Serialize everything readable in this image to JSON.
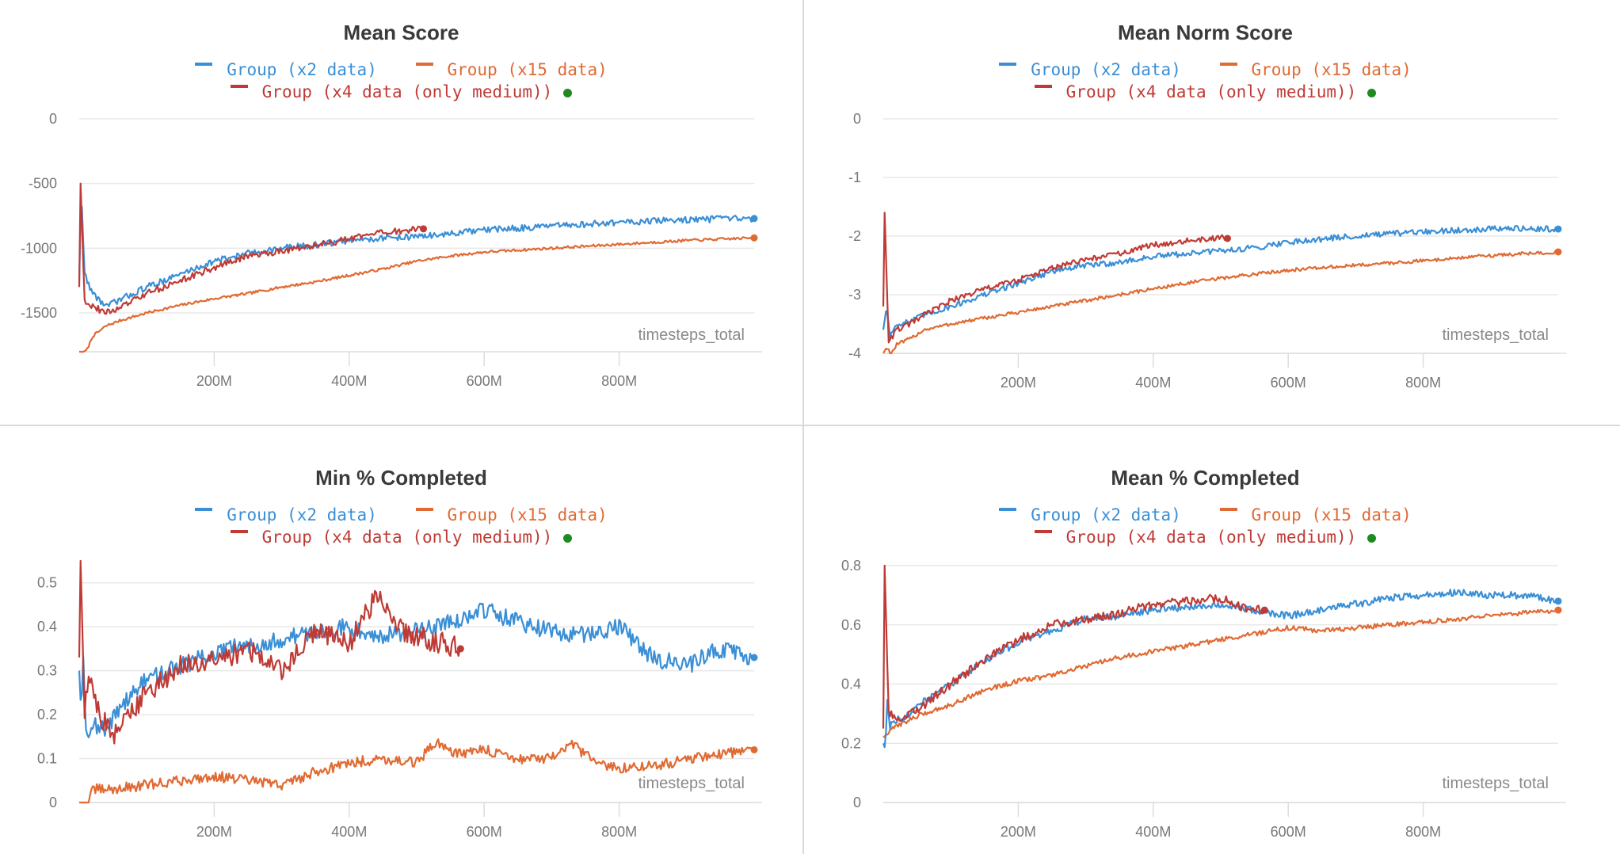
{
  "colors": {
    "x2": "#3a8fd6",
    "x15": "#e06a33",
    "x4": "#bf3a35",
    "dot": "#1f8a1f",
    "grid": "#e8e8e8",
    "axis_text": "#777777"
  },
  "legend": {
    "x2": "Group (x2 data)",
    "x15": "Group (x15 data)",
    "x4": "Group (x4 data (only medium))"
  },
  "chart_data": [
    {
      "type": "line",
      "title": "Mean Score",
      "xlabel": "timesteps_total",
      "ylabel": "",
      "xlim": [
        0,
        1000
      ],
      "ylim": [
        -1800,
        0
      ],
      "yticks": [
        0,
        -500,
        -1000,
        -1500
      ],
      "ytick_labels": [
        "0",
        "-500",
        "-1000",
        "-1500"
      ],
      "xticks": [
        200,
        400,
        600,
        800
      ],
      "xtick_labels": [
        "200M",
        "400M",
        "600M",
        "800M"
      ],
      "grid": true,
      "legend_position": "top-center",
      "x_unit": "M timesteps",
      "series": [
        {
          "name": "Group (x2 data)",
          "key": "x2",
          "x": [
            0,
            3,
            8,
            20,
            40,
            60,
            100,
            150,
            200,
            250,
            300,
            350,
            400,
            450,
            500,
            550,
            600,
            700,
            800,
            900,
            1000
          ],
          "y": [
            -1250,
            -550,
            -1200,
            -1350,
            -1450,
            -1400,
            -1300,
            -1200,
            -1100,
            -1040,
            -1000,
            -975,
            -940,
            -920,
            -910,
            -890,
            -860,
            -830,
            -800,
            -780,
            -770
          ],
          "noise": 25
        },
        {
          "name": "Group (x15 data)",
          "key": "x15",
          "x": [
            0,
            5,
            12,
            20,
            40,
            60,
            100,
            150,
            200,
            250,
            300,
            350,
            400,
            450,
            500,
            550,
            600,
            700,
            800,
            900,
            1000
          ],
          "y": [
            -1800,
            -1820,
            -1780,
            -1680,
            -1600,
            -1560,
            -1500,
            -1440,
            -1390,
            -1350,
            -1300,
            -1260,
            -1210,
            -1160,
            -1100,
            -1060,
            -1030,
            -1000,
            -970,
            -940,
            -920
          ],
          "noise": 10
        },
        {
          "name": "Group (x4 data (only medium))",
          "key": "x4",
          "x": [
            0,
            2,
            8,
            20,
            40,
            60,
            100,
            150,
            200,
            250,
            300,
            350,
            400,
            450,
            510
          ],
          "y": [
            -1300,
            -500,
            -1400,
            -1450,
            -1500,
            -1460,
            -1350,
            -1250,
            -1150,
            -1060,
            -1020,
            -980,
            -930,
            -880,
            -850
          ],
          "noise": 25
        }
      ]
    },
    {
      "type": "line",
      "title": "Mean Norm Score",
      "xlabel": "timesteps_total",
      "ylabel": "",
      "xlim": [
        0,
        1000
      ],
      "ylim": [
        -4,
        0
      ],
      "yticks": [
        0,
        -1,
        -2,
        -3,
        -4
      ],
      "ytick_labels": [
        "0",
        "-1",
        "-2",
        "-3",
        "-4"
      ],
      "xticks": [
        200,
        400,
        600,
        800
      ],
      "xtick_labels": [
        "200M",
        "400M",
        "600M",
        "800M"
      ],
      "grid": true,
      "legend_position": "top-center",
      "x_unit": "M timesteps",
      "series": [
        {
          "name": "Group (x2 data)",
          "key": "x2",
          "x": [
            0,
            5,
            10,
            20,
            40,
            60,
            100,
            150,
            200,
            250,
            300,
            350,
            400,
            450,
            500,
            550,
            600,
            700,
            800,
            900,
            1000
          ],
          "y": [
            -3.6,
            -3.2,
            -3.7,
            -3.5,
            -3.45,
            -3.35,
            -3.2,
            -3.0,
            -2.8,
            -2.6,
            -2.5,
            -2.45,
            -2.35,
            -2.3,
            -2.25,
            -2.2,
            -2.1,
            -2.0,
            -1.93,
            -1.87,
            -1.88
          ],
          "noise": 0.05
        },
        {
          "name": "Group (x15 data)",
          "key": "x15",
          "x": [
            0,
            5,
            12,
            20,
            40,
            60,
            100,
            150,
            200,
            250,
            300,
            350,
            400,
            450,
            500,
            550,
            600,
            700,
            800,
            900,
            1000
          ],
          "y": [
            -4.0,
            -3.9,
            -4.0,
            -3.85,
            -3.75,
            -3.6,
            -3.5,
            -3.4,
            -3.3,
            -3.2,
            -3.1,
            -3.0,
            -2.9,
            -2.8,
            -2.72,
            -2.65,
            -2.58,
            -2.5,
            -2.42,
            -2.33,
            -2.27
          ],
          "noise": 0.03
        },
        {
          "name": "Group (x4 data (only medium))",
          "key": "x4",
          "x": [
            0,
            2,
            8,
            20,
            40,
            60,
            100,
            150,
            200,
            250,
            300,
            350,
            400,
            450,
            500,
            510
          ],
          "y": [
            -3.2,
            -1.6,
            -3.8,
            -3.6,
            -3.5,
            -3.35,
            -3.1,
            -2.9,
            -2.75,
            -2.55,
            -2.4,
            -2.3,
            -2.15,
            -2.08,
            -2.03,
            -2.04
          ],
          "noise": 0.05
        }
      ]
    },
    {
      "type": "line",
      "title": "Min % Completed",
      "xlabel": "timesteps_total",
      "ylabel": "",
      "xlim": [
        0,
        1000
      ],
      "ylim": [
        0,
        0.55
      ],
      "yticks": [
        0,
        0.1,
        0.2,
        0.3,
        0.4,
        0.5
      ],
      "ytick_labels": [
        "0",
        "0.1",
        "0.2",
        "0.3",
        "0.4",
        "0.5"
      ],
      "xticks": [
        200,
        400,
        600,
        800
      ],
      "xtick_labels": [
        "200M",
        "400M",
        "600M",
        "800M"
      ],
      "grid": true,
      "legend_position": "top-center",
      "x_unit": "M timesteps",
      "series": [
        {
          "name": "Group (x2 data)",
          "key": "x2",
          "x": [
            0,
            3,
            6,
            10,
            20,
            40,
            60,
            100,
            150,
            200,
            250,
            300,
            350,
            400,
            450,
            500,
            550,
            600,
            650,
            700,
            750,
            800,
            850,
            900,
            950,
            1000
          ],
          "y": [
            0.3,
            0.2,
            0.34,
            0.16,
            0.18,
            0.16,
            0.22,
            0.28,
            0.31,
            0.34,
            0.36,
            0.37,
            0.39,
            0.4,
            0.38,
            0.39,
            0.41,
            0.44,
            0.41,
            0.39,
            0.38,
            0.4,
            0.33,
            0.31,
            0.35,
            0.33
          ],
          "noise": 0.02
        },
        {
          "name": "Group (x15 data)",
          "key": "x15",
          "x": [
            0,
            15,
            20,
            50,
            100,
            150,
            200,
            250,
            300,
            350,
            400,
            450,
            500,
            530,
            560,
            600,
            650,
            700,
            730,
            780,
            820,
            880,
            900,
            950,
            1000
          ],
          "y": [
            0.0,
            0.0,
            0.03,
            0.03,
            0.04,
            0.05,
            0.06,
            0.05,
            0.04,
            0.07,
            0.09,
            0.1,
            0.09,
            0.14,
            0.11,
            0.12,
            0.1,
            0.1,
            0.13,
            0.08,
            0.08,
            0.09,
            0.1,
            0.11,
            0.12
          ],
          "noise": 0.012
        },
        {
          "name": "Group (x4 data (only medium))",
          "key": "x4",
          "x": [
            0,
            2,
            8,
            15,
            30,
            50,
            100,
            150,
            200,
            250,
            300,
            350,
            400,
            440,
            480,
            520,
            565
          ],
          "y": [
            0.33,
            0.55,
            0.21,
            0.29,
            0.2,
            0.15,
            0.25,
            0.31,
            0.32,
            0.35,
            0.3,
            0.39,
            0.36,
            0.47,
            0.39,
            0.37,
            0.35
          ],
          "noise": 0.025
        }
      ]
    },
    {
      "type": "line",
      "title": "Mean % Completed",
      "xlabel": "timesteps_total",
      "ylabel": "",
      "xlim": [
        0,
        1000
      ],
      "ylim": [
        0,
        0.8
      ],
      "yticks": [
        0,
        0.2,
        0.4,
        0.6,
        0.8
      ],
      "ytick_labels": [
        "0",
        "0.2",
        "0.4",
        "0.6",
        "0.8"
      ],
      "xticks": [
        200,
        400,
        600,
        800
      ],
      "xtick_labels": [
        "200M",
        "400M",
        "600M",
        "800M"
      ],
      "grid": true,
      "legend_position": "top-center",
      "x_unit": "M timesteps",
      "series": [
        {
          "name": "Group (x2 data)",
          "key": "x2",
          "x": [
            0,
            3,
            6,
            10,
            20,
            40,
            60,
            100,
            150,
            200,
            250,
            300,
            350,
            400,
            450,
            500,
            550,
            600,
            650,
            700,
            750,
            800,
            850,
            900,
            950,
            1000
          ],
          "y": [
            0.2,
            0.18,
            0.35,
            0.26,
            0.28,
            0.3,
            0.34,
            0.4,
            0.48,
            0.54,
            0.58,
            0.62,
            0.63,
            0.65,
            0.66,
            0.67,
            0.65,
            0.63,
            0.65,
            0.67,
            0.69,
            0.7,
            0.71,
            0.7,
            0.7,
            0.68
          ],
          "noise": 0.012
        },
        {
          "name": "Group (x15 data)",
          "key": "x15",
          "x": [
            0,
            10,
            20,
            40,
            60,
            100,
            150,
            200,
            250,
            300,
            350,
            400,
            450,
            500,
            550,
            600,
            650,
            700,
            750,
            800,
            850,
            900,
            950,
            1000
          ],
          "y": [
            0.22,
            0.24,
            0.26,
            0.28,
            0.3,
            0.33,
            0.38,
            0.41,
            0.43,
            0.46,
            0.49,
            0.51,
            0.53,
            0.55,
            0.57,
            0.59,
            0.58,
            0.59,
            0.6,
            0.61,
            0.62,
            0.63,
            0.64,
            0.65
          ],
          "noise": 0.008
        },
        {
          "name": "Group (x4 data (only medium))",
          "key": "x4",
          "x": [
            0,
            2,
            8,
            20,
            40,
            60,
            100,
            150,
            200,
            250,
            300,
            350,
            400,
            450,
            500,
            530,
            565
          ],
          "y": [
            0.25,
            0.8,
            0.3,
            0.28,
            0.3,
            0.33,
            0.4,
            0.48,
            0.55,
            0.6,
            0.62,
            0.64,
            0.67,
            0.68,
            0.69,
            0.66,
            0.65
          ],
          "noise": 0.015
        }
      ]
    }
  ]
}
